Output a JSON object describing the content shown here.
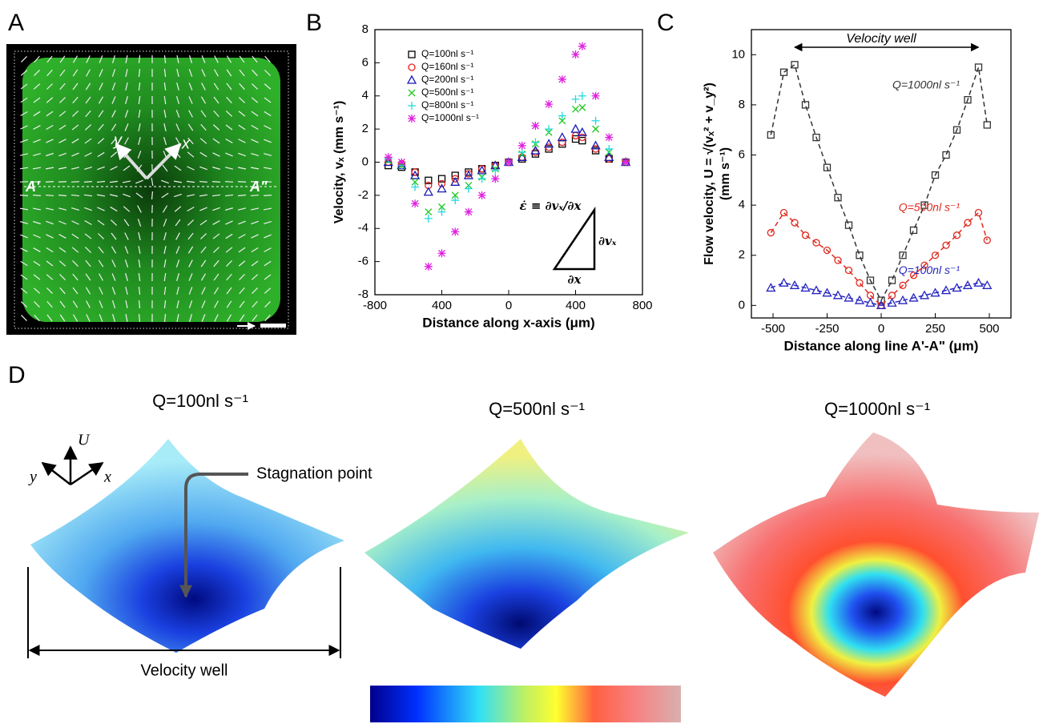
{
  "panel_labels": [
    "A",
    "B",
    "C",
    "D"
  ],
  "image_a": {
    "axis_x": "x",
    "axis_y": "y",
    "line_start": "A'",
    "line_end": "A\""
  },
  "chart_data": [
    {
      "type": "scatter",
      "x_label": "Distance along x-axis (μm)",
      "y_label": "Velocity, vₓ (mm s⁻¹)",
      "annotations": [
        "ε̇ ≡ ∂vₓ/∂x",
        "∂vₓ",
        "∂x"
      ],
      "xlim": [
        -800,
        800
      ],
      "ylim": [
        -8,
        8
      ],
      "xticks": [
        -800,
        {
          "value": -400,
          "label": "400"
        },
        0,
        400,
        800
      ],
      "yticks": [
        -8,
        -6,
        -4,
        -2,
        0,
        2,
        4,
        6,
        8
      ],
      "legend": "upper-left",
      "x": [
        -720,
        -640,
        -560,
        -480,
        -400,
        -320,
        -240,
        -160,
        -80,
        0,
        80,
        160,
        240,
        320,
        400,
        440,
        520,
        600,
        700
      ],
      "series": [
        {
          "name": "Q=100nl s⁻¹",
          "color": "#000000",
          "marker": "square",
          "values": [
            -0.2,
            -0.3,
            -0.6,
            -1.1,
            -1,
            -0.8,
            -0.6,
            -0.4,
            -0.2,
            0,
            0.2,
            0.5,
            0.8,
            1.1,
            1.4,
            1.3,
            0.7,
            0.2,
            0
          ]
        },
        {
          "name": "Q=160nl s⁻¹",
          "color": "#e8201c",
          "marker": "circle",
          "values": [
            0,
            -0.1,
            -0.6,
            -1.4,
            -1.3,
            -1,
            -0.7,
            -0.4,
            -0.2,
            0,
            0.3,
            0.6,
            0.9,
            1.2,
            1.6,
            1.5,
            0.8,
            0.2,
            0
          ]
        },
        {
          "name": "Q=200nl s⁻¹",
          "color": "#1a1ab4",
          "marker": "triangle",
          "values": [
            0,
            -0.2,
            -0.8,
            -1.8,
            -1.6,
            -1.2,
            -0.8,
            -0.5,
            -0.2,
            0,
            0.3,
            0.7,
            1.1,
            1.5,
            2,
            1.8,
            1,
            0.3,
            0
          ]
        },
        {
          "name": "Q=500nl s⁻¹",
          "color": "#1ec81e",
          "marker": "x",
          "values": [
            0.1,
            -0.2,
            -1.2,
            -3,
            -2.7,
            -2,
            -1.4,
            -0.9,
            -0.4,
            0,
            0.5,
            1.1,
            1.8,
            2.5,
            3.2,
            3.3,
            2,
            0.6,
            0
          ]
        },
        {
          "name": "Q=800nl s⁻¹",
          "color": "#22d8e0",
          "marker": "plus",
          "values": [
            0.2,
            -0.2,
            -1.5,
            -3.4,
            -3,
            -2.3,
            -1.6,
            -1,
            -0.5,
            0,
            0.6,
            1.2,
            2,
            2.8,
            3.8,
            4,
            2.5,
            0.8,
            0
          ]
        },
        {
          "name": "Q=1000nl s⁻¹",
          "color": "#e020e0",
          "marker": "asterisk",
          "values": [
            0.3,
            0,
            -2.5,
            -6.3,
            -5.5,
            -4.2,
            -3,
            -2,
            -1,
            0,
            1,
            2.2,
            3.5,
            5,
            6.5,
            7,
            4,
            1.5,
            0
          ]
        }
      ]
    },
    {
      "type": "scatter",
      "x_label": "Distance along line A'-A\" (μm)",
      "y_label": [
        "Flow velocity, U = √(vₓ² + v_y²)",
        "(mm s⁻¹)"
      ],
      "annotation": "Velocity well",
      "xlim": [
        -600,
        600
      ],
      "ylim": [
        -0.5,
        11
      ],
      "xticks": [
        -500,
        -250,
        0,
        250,
        500
      ],
      "yticks": [
        0,
        2,
        4,
        6,
        8,
        10
      ],
      "line_style": "dashed",
      "x": [
        -510,
        -450,
        -400,
        -350,
        -300,
        -250,
        -200,
        -150,
        -100,
        -50,
        0,
        50,
        100,
        150,
        200,
        250,
        300,
        350,
        400,
        450,
        490
      ],
      "series": [
        {
          "name": "Q=1000nl s⁻¹",
          "color": "#333333",
          "marker": "square",
          "values": [
            6.8,
            9.3,
            9.6,
            8,
            6.7,
            5.5,
            4.3,
            3.2,
            2,
            1,
            0.2,
            1,
            2,
            3,
            4,
            5.2,
            6,
            7,
            8.2,
            9.5,
            7.2
          ]
        },
        {
          "name": "Q=500nl s⁻¹",
          "color": "#e02a20",
          "marker": "circle",
          "values": [
            2.9,
            3.7,
            3.3,
            2.8,
            2.5,
            2.2,
            1.8,
            1.4,
            0.9,
            0.4,
            0,
            0.4,
            0.8,
            1.2,
            1.6,
            2,
            2.4,
            2.8,
            3.3,
            3.7,
            2.6
          ]
        },
        {
          "name": "Q=100nl s⁻¹",
          "color": "#2424c0",
          "marker": "triangle",
          "values": [
            0.7,
            0.9,
            0.8,
            0.7,
            0.6,
            0.5,
            0.4,
            0.3,
            0.2,
            0.1,
            0,
            0.1,
            0.2,
            0.3,
            0.4,
            0.5,
            0.6,
            0.7,
            0.8,
            0.9,
            0.8
          ]
        }
      ]
    }
  ],
  "panel_d": {
    "titles": [
      "Q=100nl s⁻¹",
      "Q=500nl s⁻¹",
      "Q=1000nl s⁻¹"
    ],
    "axis_u": "U",
    "axis_x": "x",
    "axis_y": "y",
    "stagnation": "Stagnation point",
    "well": "Velocity well"
  }
}
